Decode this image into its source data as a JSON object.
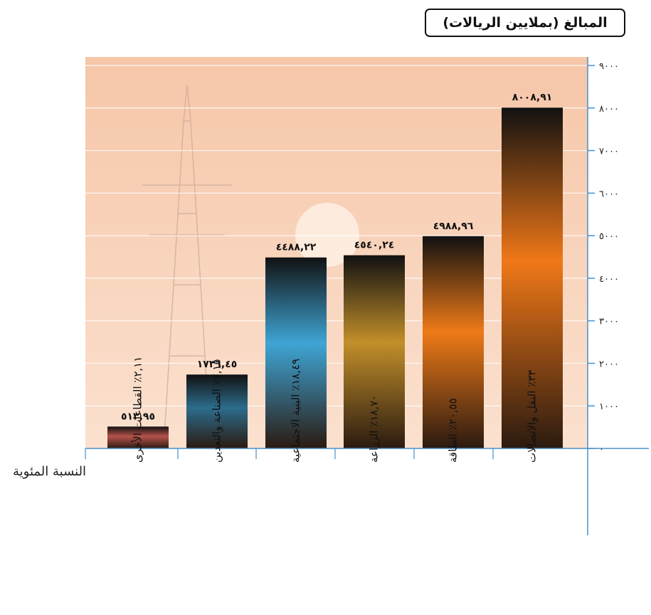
{
  "chart_data": {
    "type": "bar",
    "title": "المبالغ (بملايين الريالات)",
    "xlabel": "النسبة المئوية",
    "categories": [
      "٢,١١٪ القطاعات الأخرى",
      "٧,١٥٪ الصناعة والتعدين",
      "١٨,٤٩٪ البنية الاجتماعية",
      "١٨,٧٠٪ الزراعة",
      "٢٠,٥٥٪ الطاقة",
      "٣٣٪ النقل والاتصالات"
    ],
    "values": [
      513.95,
      1736.45,
      4488.22,
      4540.24,
      4988.96,
      8008.91
    ],
    "value_labels": [
      "٥١٣,٩٥",
      "١٧٣٦,٤٥",
      "٤٤٨٨,٢٢",
      "٤٥٤٠,٢٤",
      "٤٩٨٨,٩٦",
      "٨٠٠٨,٩١"
    ],
    "ylim": [
      0,
      9000
    ],
    "yticks": [
      "٠",
      "١٠٠٠",
      "٢٠٠٠",
      "٣٠٠٠",
      "٤٠٠٠",
      "٥٠٠٠",
      "٦٠٠٠",
      "٧٠٠٠",
      "٨٠٠٠",
      "٩٠٠٠"
    ],
    "grid": true,
    "axis_side": "right"
  },
  "colors": {
    "axis": "#4a90c8",
    "grid": "#ffffff",
    "bg_top": "#f6c6a8",
    "bg_bottom": "#fbe1cf",
    "bars": [
      "#b5524a",
      "#2d6c8c",
      "#3fa5d5",
      "#c28f2a",
      "#ee7a18",
      "#f07818"
    ]
  }
}
